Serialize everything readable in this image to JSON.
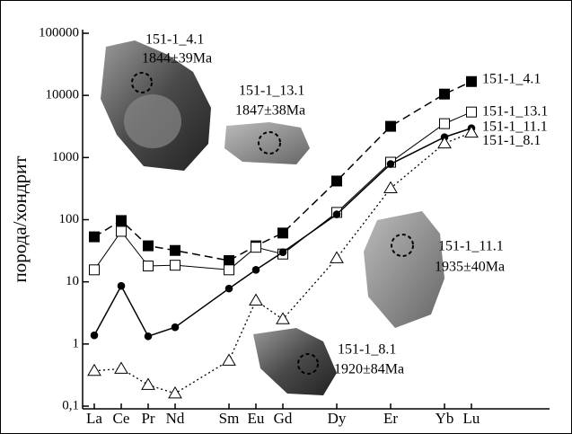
{
  "chart_data": {
    "type": "line",
    "y_label": "порода/хондрит",
    "yscale": "log",
    "ylim": [
      0.1,
      100000
    ],
    "yticks": [
      {
        "value": 0.1,
        "label": "0,1"
      },
      1,
      10,
      100,
      1000,
      10000,
      100000
    ],
    "grid": false,
    "categories": [
      "La",
      "Ce",
      "Pr",
      "Nd",
      "Sm",
      "Eu",
      "Gd",
      "Dy",
      "Er",
      "Yb",
      "Lu"
    ],
    "series": [
      {
        "name": "151-1_4.1",
        "color": "#000000",
        "values": [
          53,
          97,
          38,
          32,
          22,
          38,
          61,
          419,
          3180,
          10500,
          16700
        ]
      },
      {
        "name": "151-1_13.1",
        "color": "#000000",
        "values": [
          15.6,
          65,
          18,
          18.5,
          15.6,
          36,
          28,
          131,
          841,
          3510,
          5400
        ]
      },
      {
        "name": "151-1_11.1",
        "color": "#000000",
        "values": [
          1.38,
          8.6,
          1.33,
          1.86,
          7.8,
          15.6,
          30,
          122,
          787,
          2130,
          2970
        ]
      },
      {
        "name": "151-1_8.1",
        "color": "#000000",
        "values": [
          0.37,
          0.4,
          0.22,
          0.16,
          0.54,
          5.0,
          2.5,
          24,
          321,
          1690,
          2520
        ]
      }
    ],
    "annotations": [
      {
        "lines": [
          "151-1_4.1",
          "1844±39Ma"
        ]
      },
      {
        "lines": [
          "151-1_13.1",
          "1847±38Ma"
        ]
      },
      {
        "lines": [
          "151-1_11.1",
          "1935±40Ma"
        ]
      },
      {
        "lines": [
          "151-1_8.1",
          "1920±84Ma"
        ]
      }
    ]
  }
}
